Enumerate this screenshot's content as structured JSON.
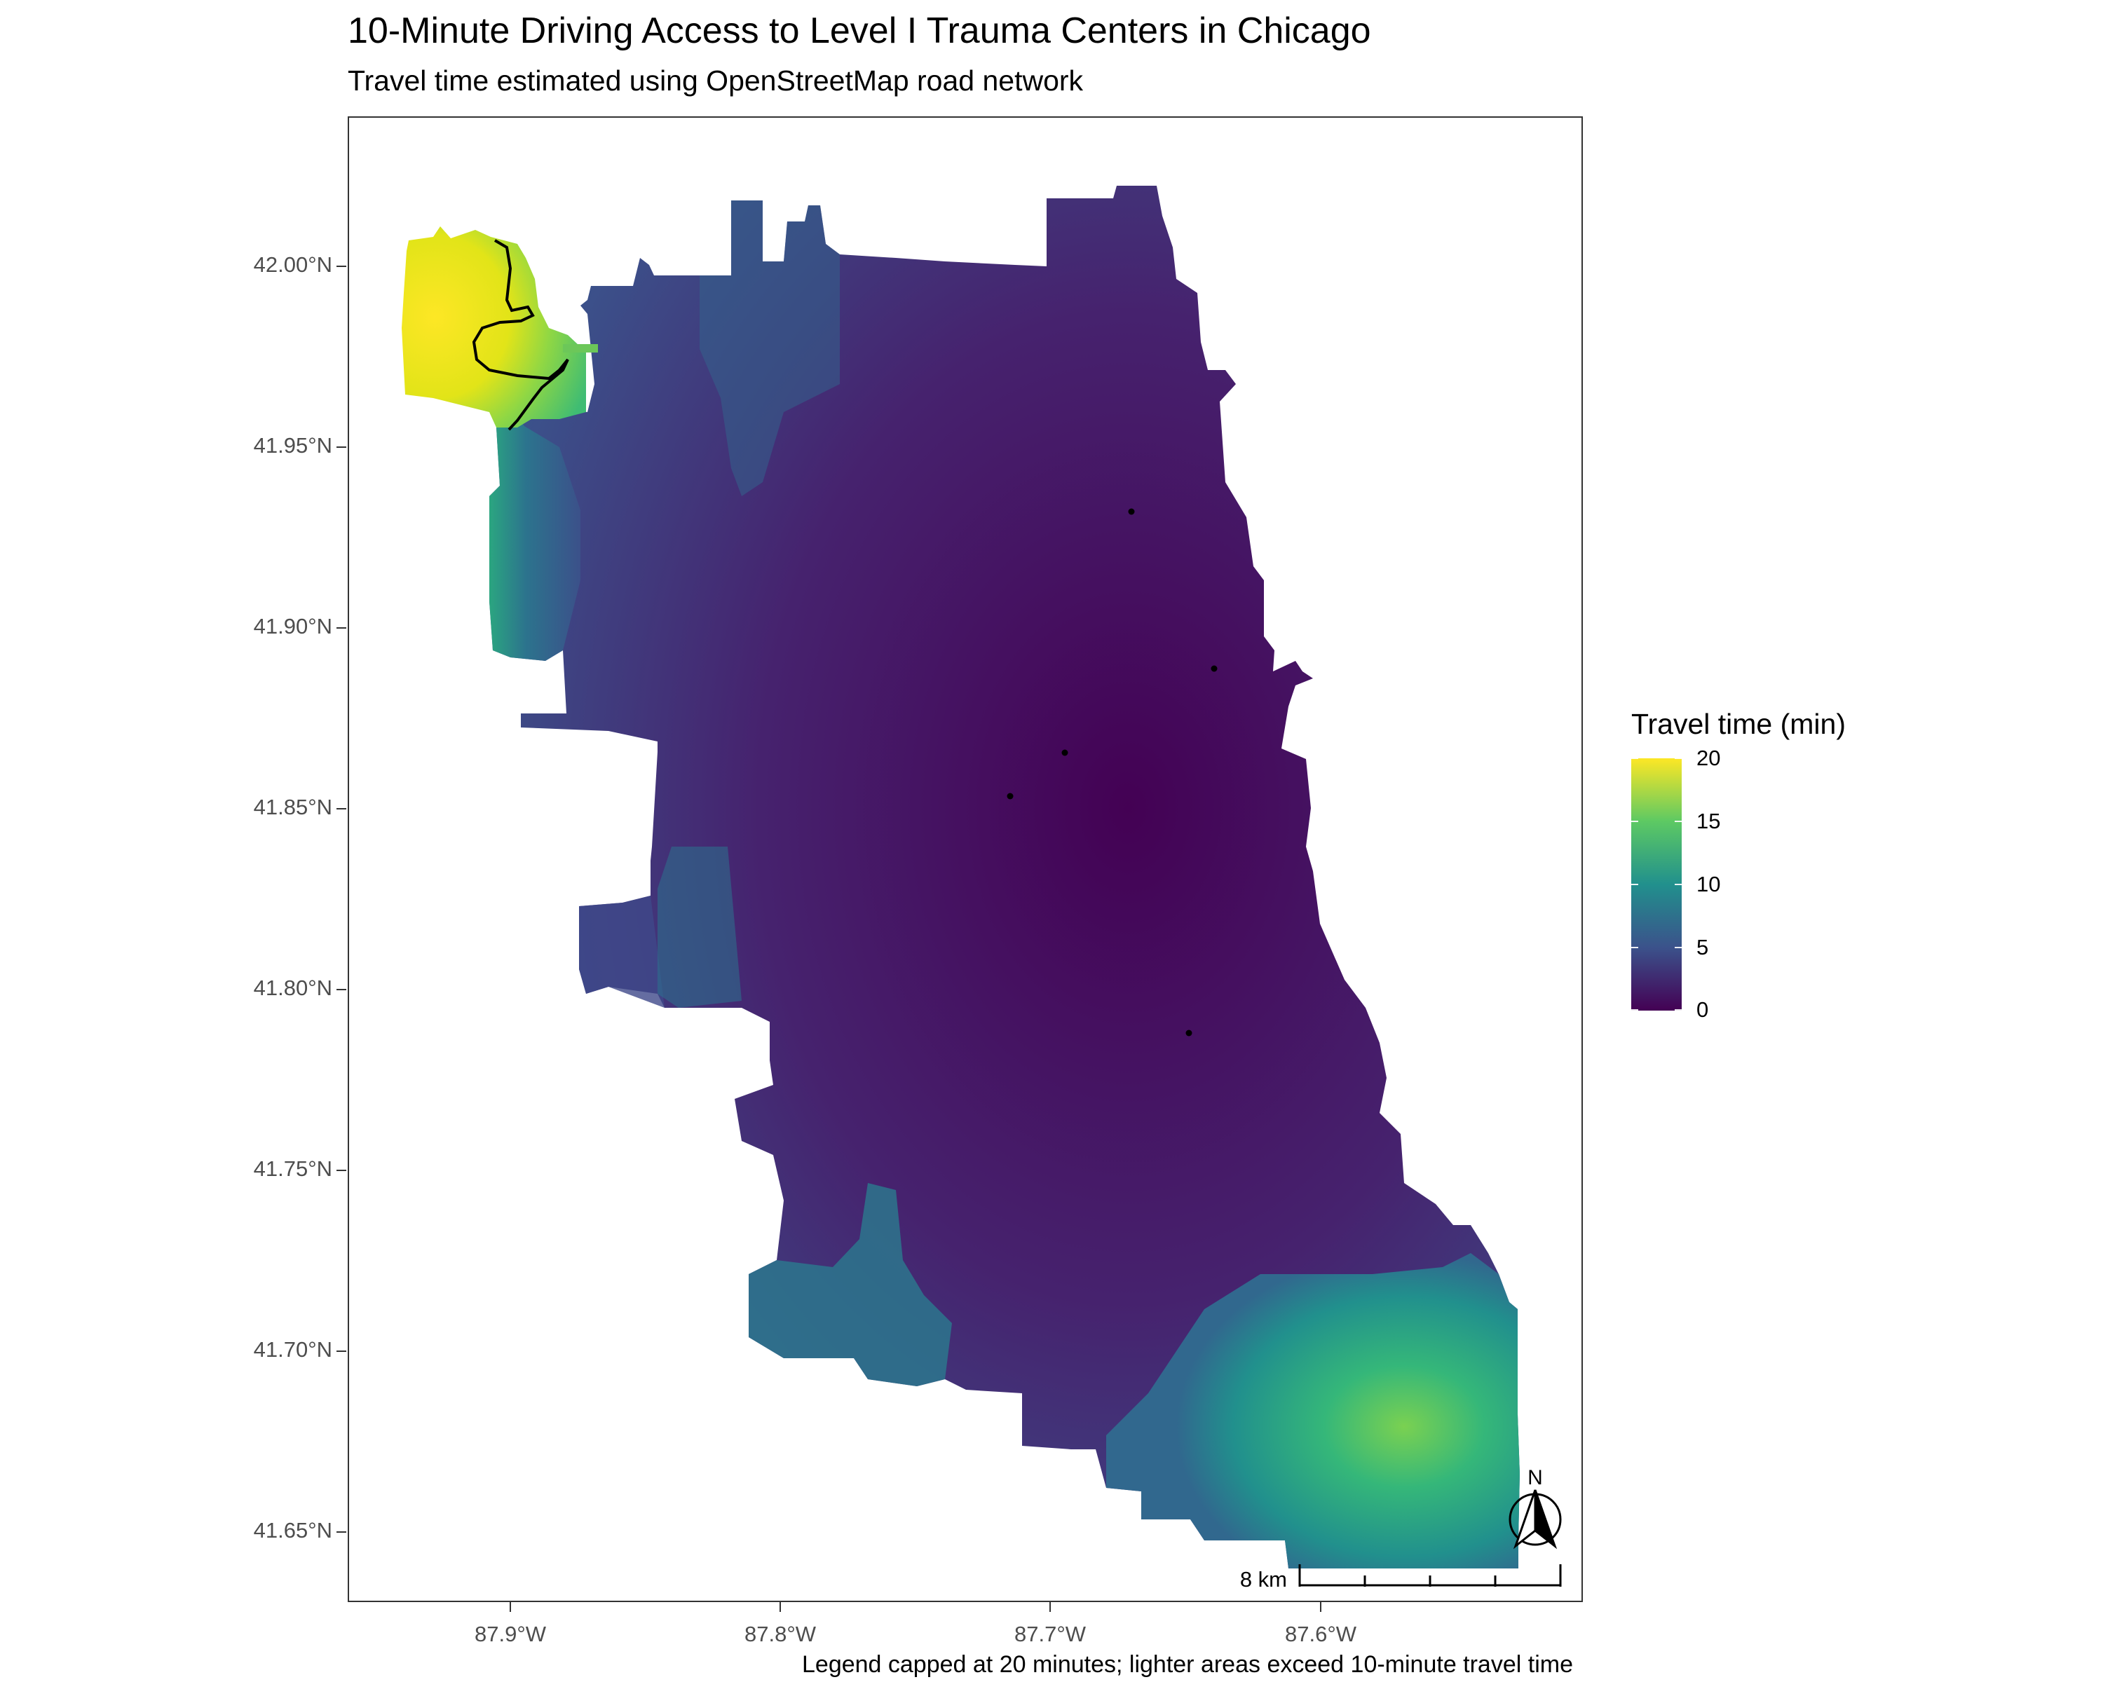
{
  "title": "10-Minute Driving Access to Level I Trauma Centers in Chicago",
  "subtitle": "Travel time estimated using OpenStreetMap road network",
  "caption": "Legend capped at 20 minutes; lighter areas exceed 10-minute travel time",
  "axes": {
    "y_labels": [
      "42.00°N",
      "41.95°N",
      "41.90°N",
      "41.85°N",
      "41.80°N",
      "41.75°N",
      "41.70°N",
      "41.65°N"
    ],
    "x_labels": [
      "87.9°W",
      "87.8°W",
      "87.7°W",
      "87.6°W"
    ]
  },
  "legend": {
    "title": "Travel time (min)",
    "labels": [
      "20",
      "15",
      "10",
      "5",
      "0"
    ],
    "colors": [
      "#fde725",
      "#5dc963",
      "#21908d",
      "#3b528b",
      "#440154"
    ]
  },
  "map": {
    "scalebar_label": "8 km",
    "north_label": "N",
    "trauma_centers": [
      {
        "lon": -87.651,
        "lat": 41.937
      },
      {
        "lon": -87.622,
        "lat": 41.895
      },
      {
        "lon": -87.674,
        "lat": 41.873
      },
      {
        "lon": -87.694,
        "lat": 41.861
      },
      {
        "lon": -87.605,
        "lat": 41.789
      }
    ],
    "colors": {
      "low": "#440154",
      "mid": "#21908d",
      "high": "#fde725"
    }
  }
}
